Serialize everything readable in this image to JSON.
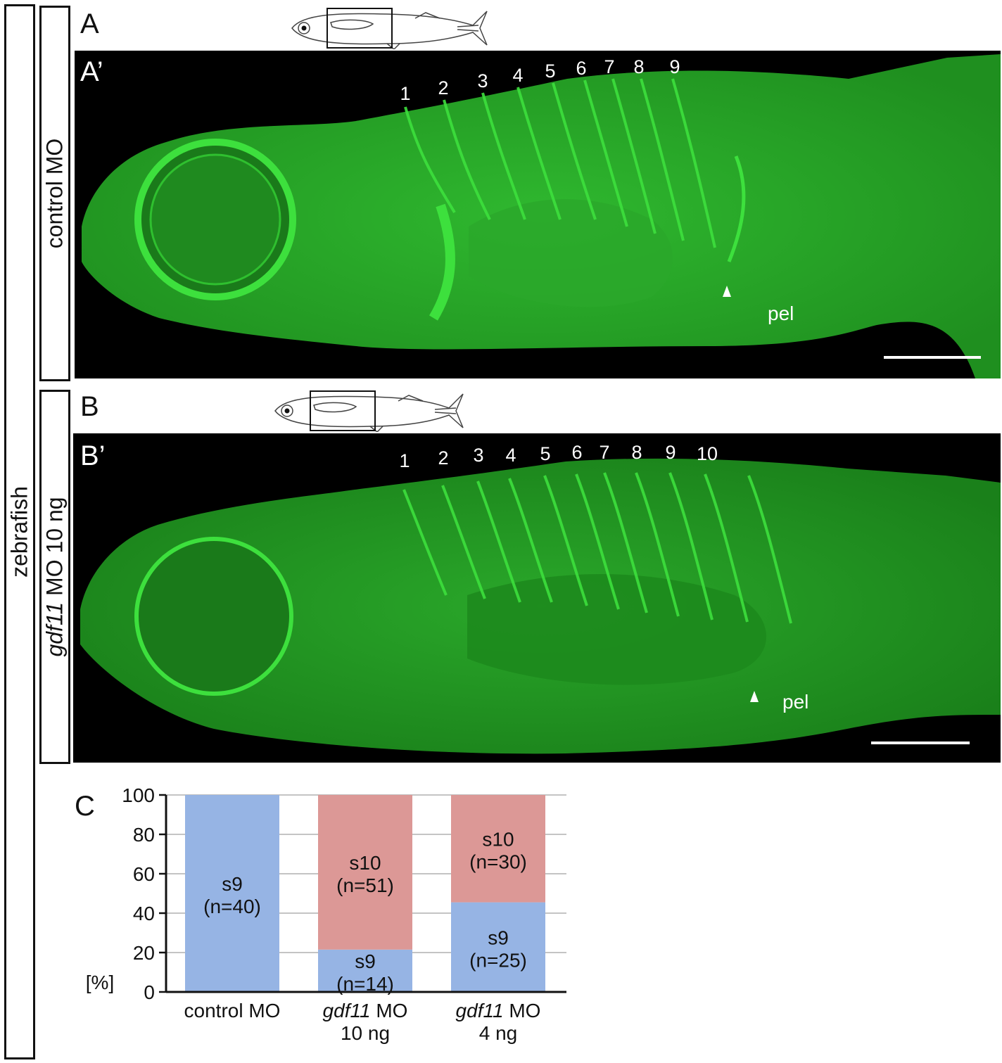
{
  "side_label": "zebrafish",
  "panels": {
    "A": {
      "label": "A",
      "sub_label": "A’",
      "row_label": "control MO",
      "vertebrae": [
        "1",
        "2",
        "3",
        "4",
        "5",
        "6",
        "7",
        "8",
        "9"
      ],
      "fin_label": "pel"
    },
    "B": {
      "label": "B",
      "sub_label": "B’",
      "row_label_italic": "gdf11",
      "row_label_rest": " MO 10 ng",
      "vertebrae": [
        "1",
        "2",
        "3",
        "4",
        "5",
        "6",
        "7",
        "8",
        "9",
        "10"
      ],
      "fin_label": "pel"
    },
    "C": {
      "label": "C"
    }
  },
  "colors": {
    "fluorescence": "#3cd93c",
    "s9": "#96b4e4",
    "s10": "#dc9896"
  },
  "chart_data": {
    "type": "bar",
    "stacked": true,
    "ylabel": "[%]",
    "ylim": [
      0,
      100
    ],
    "yticks": [
      "0",
      "20",
      "40",
      "60",
      "80",
      "100"
    ],
    "grid": true,
    "categories": [
      {
        "italic": "",
        "rest": "control MO",
        "line2": ""
      },
      {
        "italic": "gdf11",
        "rest": " MO",
        "line2": "10 ng"
      },
      {
        "italic": "gdf11",
        "rest": " MO",
        "line2": "4 ng"
      }
    ],
    "series": [
      {
        "name": "s9",
        "values": [
          100,
          21.5,
          45.5
        ],
        "labels": [
          "(n=40)",
          "(n=14)",
          "(n=25)"
        ]
      },
      {
        "name": "s10",
        "values": [
          0,
          78.5,
          54.5
        ],
        "labels": [
          "",
          "(n=51)",
          "(n=30)"
        ]
      }
    ]
  }
}
